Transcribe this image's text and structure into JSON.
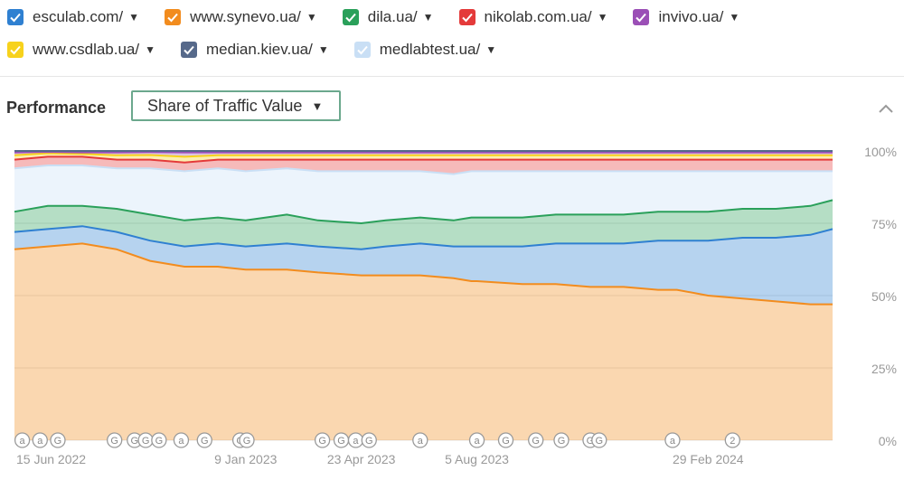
{
  "legend": {
    "items": [
      {
        "label": "esculab.com/",
        "color": "#2f80d1",
        "checked": true
      },
      {
        "label": "www.synevo.ua/",
        "color": "#f28c1e",
        "checked": true
      },
      {
        "label": "dila.ua/",
        "color": "#2aa05a",
        "checked": true
      },
      {
        "label": "nikolab.com.ua/",
        "color": "#e43a3a",
        "checked": true
      },
      {
        "label": "invivo.ua/",
        "color": "#9b4fb6",
        "checked": true
      },
      {
        "label": "www.csdlab.ua/",
        "color": "#f7d21c",
        "checked": true
      },
      {
        "label": "median.kiev.ua/",
        "color": "#56698a",
        "checked": true
      },
      {
        "label": "medlabtest.ua/",
        "color": "#c9dff5",
        "checked": true
      }
    ]
  },
  "performance": {
    "title": "Performance",
    "metric_selected": "Share of Traffic Value",
    "collapse_icon": "chevron-up-icon"
  },
  "chart_data": {
    "type": "area",
    "stacked": true,
    "x_type": "date",
    "x": [
      "2022-06-15",
      "2022-07-15",
      "2022-08-15",
      "2022-09-15",
      "2022-10-15",
      "2022-11-15",
      "2022-12-15",
      "2023-01-09",
      "2023-02-15",
      "2023-03-15",
      "2023-04-23",
      "2023-05-15",
      "2023-06-15",
      "2023-07-15",
      "2023-07-31",
      "2023-08-05",
      "2023-09-15",
      "2023-10-15",
      "2023-11-15",
      "2023-12-15",
      "2024-01-15",
      "2024-02-01",
      "2024-02-29",
      "2024-03-31",
      "2024-04-30",
      "2024-05-31",
      "2024-06-20"
    ],
    "series": [
      {
        "name": "www.synevo.ua/",
        "color": "#f28c1e",
        "values": [
          66,
          67,
          68,
          66,
          62,
          60,
          60,
          59,
          59,
          58,
          57,
          57,
          57,
          56,
          55,
          55,
          54,
          54,
          53,
          53,
          52,
          52,
          50,
          49,
          48,
          47,
          47
        ]
      },
      {
        "name": "esculab.com/",
        "color": "#2f80d1",
        "values": [
          6,
          6,
          6,
          6,
          7,
          7,
          8,
          8,
          9,
          9,
          9,
          10,
          11,
          11,
          12,
          12,
          13,
          14,
          15,
          15,
          17,
          17,
          19,
          21,
          22,
          24,
          26
        ]
      },
      {
        "name": "dila.ua/",
        "color": "#2aa05a",
        "values": [
          7,
          8,
          7,
          8,
          9,
          9,
          9,
          9,
          10,
          9,
          9,
          9,
          9,
          9,
          10,
          10,
          10,
          10,
          10,
          10,
          10,
          10,
          10,
          10,
          10,
          10,
          10
        ]
      },
      {
        "name": "medlabtest.ua/",
        "color": "#c9dff5",
        "values": [
          15,
          14,
          14,
          14,
          16,
          17,
          17,
          17,
          16,
          17,
          18,
          17,
          16,
          16,
          16,
          16,
          16,
          15,
          15,
          15,
          14,
          14,
          14,
          13,
          13,
          12,
          10
        ]
      },
      {
        "name": "nikolab.com.ua/",
        "color": "#e43a3a",
        "values": [
          3,
          3,
          3,
          3,
          3,
          3,
          3,
          4,
          3,
          4,
          4,
          4,
          4,
          5,
          4,
          4,
          4,
          4,
          4,
          4,
          4,
          4,
          4,
          4,
          4,
          4,
          4
        ]
      },
      {
        "name": "www.csdlab.ua/",
        "color": "#f7d21c",
        "values": [
          1.5,
          1.2,
          1,
          1.5,
          1.6,
          2,
          1.5,
          1.5,
          1.5,
          1.5,
          1.5,
          1.5,
          1.5,
          1.5,
          1.5,
          1.5,
          1.5,
          1.5,
          1.5,
          1.5,
          1.5,
          1.5,
          1.5,
          1.5,
          1.5,
          1.5,
          1.5
        ]
      },
      {
        "name": "invivo.ua/",
        "color": "#9b4fb6",
        "values": [
          1,
          0.5,
          0.5,
          1,
          1,
          1.5,
          1,
          1,
          1,
          1,
          1,
          1,
          1,
          1,
          1,
          1,
          1,
          1,
          1,
          1,
          1,
          1,
          1,
          1,
          1,
          1,
          1
        ]
      },
      {
        "name": "median.kiev.ua/",
        "color": "#56698a",
        "values": [
          0.5,
          0.3,
          0.5,
          0.5,
          0.4,
          0.5,
          0.5,
          0.5,
          0.5,
          0.5,
          0.5,
          0.5,
          0.5,
          0.5,
          0.5,
          0.5,
          0.5,
          0.5,
          0.5,
          0.5,
          0.5,
          0.5,
          0.5,
          0.5,
          0.5,
          0.5,
          0.5
        ]
      }
    ],
    "xlabel": "",
    "ylabel": "",
    "ylim": [
      0,
      100
    ],
    "y_ticks": [
      "100%",
      "75%",
      "50%",
      "25%",
      "0%"
    ],
    "y_tick_values": [
      100,
      75,
      50,
      25,
      0
    ],
    "x_ticks": [
      {
        "date": "2022-06-15",
        "label": "15 Jun 2022"
      },
      {
        "date": "2023-01-09",
        "label": "9 Jan 2023"
      },
      {
        "date": "2023-04-23",
        "label": "23 Apr 2023"
      },
      {
        "date": "2023-08-05",
        "label": "5 Aug 2023"
      },
      {
        "date": "2024-02-29",
        "label": "29 Feb 2024"
      }
    ],
    "grid": true,
    "legend": "top",
    "annotations": [
      {
        "date": "2022-06-22",
        "text": "a"
      },
      {
        "date": "2022-07-08",
        "text": "a"
      },
      {
        "date": "2022-07-24",
        "text": "G"
      },
      {
        "date": "2022-09-13",
        "text": "G"
      },
      {
        "date": "2022-10-01",
        "text": "G"
      },
      {
        "date": "2022-10-11",
        "text": "G"
      },
      {
        "date": "2022-10-23",
        "text": "G"
      },
      {
        "date": "2022-11-12",
        "text": "a"
      },
      {
        "date": "2022-12-03",
        "text": "G"
      },
      {
        "date": "2023-01-04",
        "text": "G"
      },
      {
        "date": "2023-01-10",
        "text": "G"
      },
      {
        "date": "2023-03-19",
        "text": "G"
      },
      {
        "date": "2023-04-05",
        "text": "G"
      },
      {
        "date": "2023-04-18",
        "text": "a"
      },
      {
        "date": "2023-04-30",
        "text": "G"
      },
      {
        "date": "2023-06-15",
        "text": "a"
      },
      {
        "date": "2023-08-05",
        "text": "a"
      },
      {
        "date": "2023-08-31",
        "text": "G"
      },
      {
        "date": "2023-09-27",
        "text": "G"
      },
      {
        "date": "2023-10-20",
        "text": "G"
      },
      {
        "date": "2023-11-15",
        "text": "G"
      },
      {
        "date": "2023-11-23",
        "text": "G"
      },
      {
        "date": "2024-01-28",
        "text": "a"
      },
      {
        "date": "2024-03-22",
        "text": "2"
      }
    ]
  }
}
